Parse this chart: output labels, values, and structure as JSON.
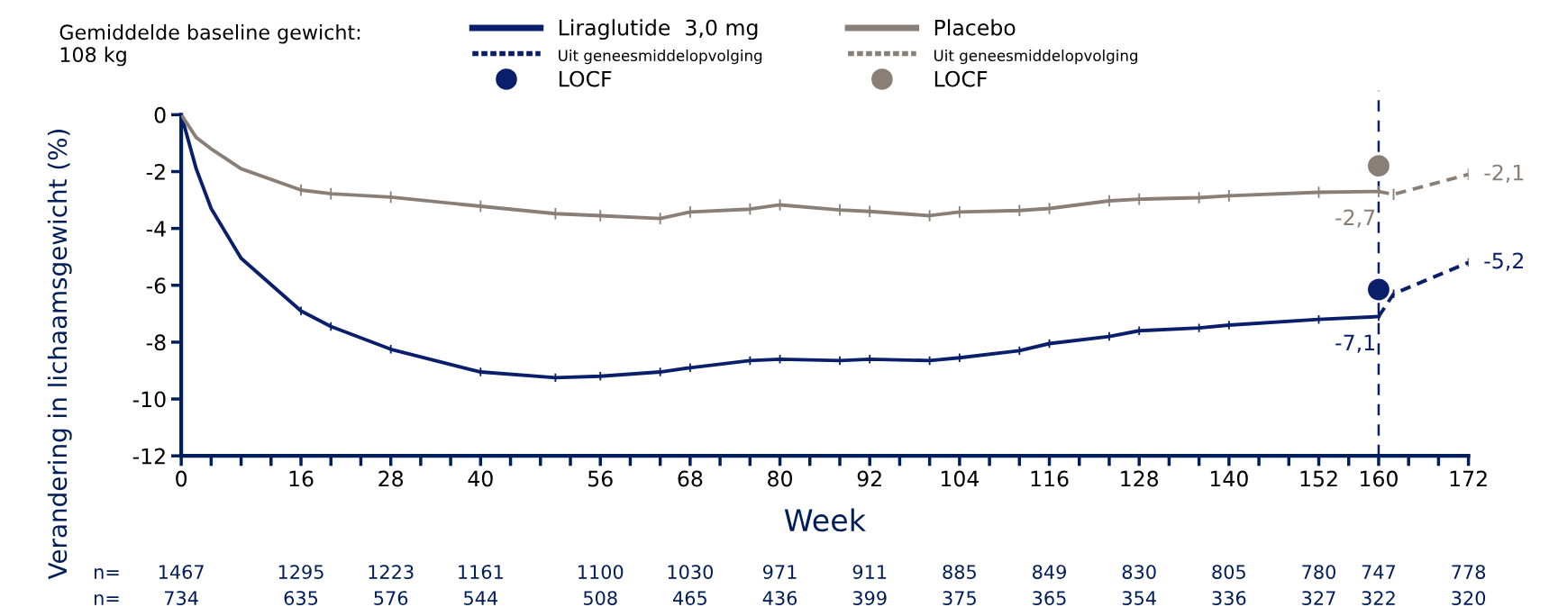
{
  "chart_data": {
    "type": "line",
    "xlabel": "Week",
    "ylabel": "Verandering in lichaamsgewicht (%)",
    "annotations": [
      "Gemiddelde baseline gewicht:\n108 kg",
      "n= 1467 1295 1223 1161 1100 1030 971 911 885 849 830 805 780 747 778",
      "n= 734 635 576 544 508 465 436 399 375 365 354 336 327 322 320"
    ],
    "xlim": [
      0,
      172
    ],
    "ylim": [
      -12,
      0
    ],
    "xticks": [
      0,
      {
        "value": 4,
        "label": null
      },
      {
        "value": 8,
        "label": null
      },
      {
        "value": 12,
        "label": null
      },
      16,
      {
        "value": 20,
        "label": null
      },
      {
        "value": 24,
        "label": null
      },
      28,
      {
        "value": 32,
        "label": null
      },
      {
        "value": 36,
        "label": null
      },
      40,
      {
        "value": 44,
        "label": null
      },
      {
        "value": 48,
        "label": null
      },
      {
        "value": 52,
        "label": null
      },
      56,
      {
        "value": 60,
        "label": null
      },
      {
        "value": 64,
        "label": null
      },
      68,
      {
        "value": 72,
        "label": null
      },
      {
        "value": 76,
        "label": null
      },
      80,
      {
        "value": 84,
        "label": null
      },
      {
        "value": 88,
        "label": null
      },
      92,
      {
        "value": 96,
        "label": null
      },
      {
        "value": 100,
        "label": null
      },
      104,
      {
        "value": 108,
        "label": null
      },
      {
        "value": 112,
        "label": null
      },
      116,
      {
        "value": 120,
        "label": null
      },
      {
        "value": 124,
        "label": null
      },
      128,
      {
        "value": 132,
        "label": null
      },
      {
        "value": 136,
        "label": null
      },
      140,
      {
        "value": 144,
        "label": null
      },
      {
        "value": 148,
        "label": null
      },
      152,
      {
        "value": 156,
        "label": null
      },
      160,
      {
        "value": 164,
        "label": null
      },
      {
        "value": 168,
        "label": null
      },
      172
    ],
    "yticks": [
      0,
      -2,
      -4,
      -6,
      -8,
      -10,
      -12
    ],
    "grid": false,
    "legend": "top",
    "ref_lines": [
      {
        "axis": "x",
        "value": 160,
        "color": "#0a1f6b",
        "line_style": "dashed"
      }
    ],
    "series": [
      {
        "name": "Liraglutide  3,0 mg",
        "color": "#0a1f6b",
        "line_style": "solid",
        "x": [
          0,
          2,
          4,
          8,
          16,
          20,
          28,
          40,
          50,
          56,
          64,
          68,
          76,
          80,
          88,
          92,
          100,
          104,
          112,
          116,
          124,
          128,
          136,
          140,
          152,
          160
        ],
        "values": [
          0,
          -1.9,
          -3.3,
          -5.05,
          -6.9,
          -7.45,
          -8.25,
          -9.05,
          -9.25,
          -9.2,
          -9.05,
          -8.9,
          -8.65,
          -8.6,
          -8.65,
          -8.6,
          -8.65,
          -8.55,
          -8.3,
          -8.05,
          -7.8,
          -7.6,
          -7.5,
          -7.4,
          -7.2,
          -7.1
        ],
        "errors": [
          null,
          null,
          null,
          null,
          0.15,
          0.15,
          0.15,
          0.15,
          0.15,
          0.15,
          0.15,
          0.15,
          0.15,
          0.15,
          0.15,
          0.15,
          0.15,
          0.15,
          0.15,
          0.15,
          0.15,
          0.15,
          0.15,
          0.15,
          0.15,
          0.15
        ],
        "value_labels": [
          null,
          null,
          null,
          null,
          null,
          null,
          null,
          null,
          null,
          null,
          null,
          null,
          null,
          null,
          null,
          null,
          null,
          null,
          null,
          null,
          null,
          null,
          null,
          null,
          null,
          "-7,1"
        ]
      },
      {
        "name": "Uit geneesmiddelopvolging",
        "color": "#0a1f6b",
        "line_style": "dashed",
        "x": [
          160,
          162,
          172
        ],
        "values": [
          -7.1,
          -6.3,
          -5.2
        ],
        "errors": [
          null,
          0.15,
          0.15
        ],
        "value_labels": [
          null,
          null,
          "-5,2"
        ]
      },
      {
        "name": "LOCF",
        "type": "scatter",
        "color": "#0a1f6b",
        "marker": "circle",
        "x": [
          160
        ],
        "values": [
          -6.15
        ]
      },
      {
        "name": "Placebo",
        "color": "#8a7f77",
        "line_style": "solid",
        "x": [
          0,
          2,
          4,
          8,
          16,
          20,
          28,
          40,
          50,
          56,
          64,
          68,
          76,
          80,
          88,
          92,
          100,
          104,
          112,
          116,
          124,
          128,
          136,
          140,
          152,
          160
        ],
        "values": [
          0,
          -0.8,
          -1.2,
          -1.9,
          -2.65,
          -2.78,
          -2.9,
          -3.22,
          -3.48,
          -3.55,
          -3.65,
          -3.42,
          -3.32,
          -3.17,
          -3.35,
          -3.4,
          -3.55,
          -3.42,
          -3.37,
          -3.3,
          -3.03,
          -2.97,
          -2.92,
          -2.85,
          -2.73,
          -2.7
        ],
        "errors": [
          null,
          null,
          null,
          null,
          0.2,
          0.2,
          0.2,
          0.2,
          0.2,
          0.2,
          0.2,
          0.2,
          0.2,
          0.2,
          0.2,
          0.2,
          0.2,
          0.2,
          0.2,
          0.2,
          0.2,
          0.2,
          0.2,
          0.2,
          0.2,
          0.2
        ],
        "value_labels": [
          null,
          null,
          null,
          null,
          null,
          null,
          null,
          null,
          null,
          null,
          null,
          null,
          null,
          null,
          null,
          null,
          null,
          null,
          null,
          null,
          null,
          null,
          null,
          null,
          null,
          "-2,7"
        ]
      },
      {
        "name": "Uit geneesmiddelopvolging",
        "color": "#8a7f77",
        "line_style": "dashed",
        "x": [
          160,
          162,
          172
        ],
        "values": [
          -2.7,
          -2.8,
          -2.1
        ],
        "errors": [
          null,
          0.2,
          0.2
        ],
        "value_labels": [
          null,
          null,
          "-2,1"
        ]
      },
      {
        "name": "LOCF",
        "type": "scatter",
        "color": "#8a7f77",
        "marker": "circle",
        "x": [
          160
        ],
        "values": [
          -1.8
        ]
      }
    ]
  }
}
